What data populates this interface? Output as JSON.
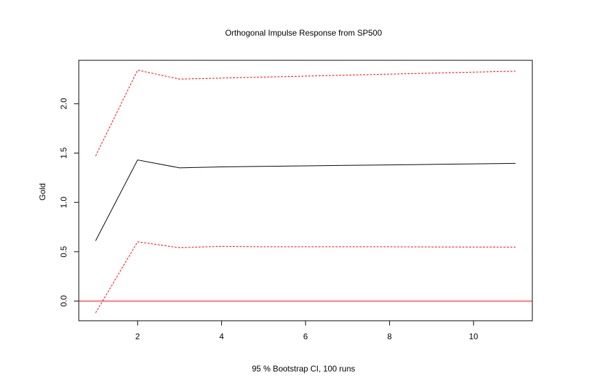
{
  "chart_data": {
    "type": "line",
    "title": "Orthogonal Impulse Response from SP500",
    "xlabel": "95 % Bootstrap CI,  100 runs",
    "ylabel": "Gold",
    "x": [
      1,
      2,
      3,
      4,
      5,
      6,
      7,
      8,
      9,
      10,
      11
    ],
    "xlim": [
      0.6,
      11.4
    ],
    "ylim": [
      -0.2,
      2.44
    ],
    "x_ticks": [
      2,
      4,
      6,
      8,
      10
    ],
    "y_ticks": [
      0.0,
      0.5,
      1.0,
      1.5,
      2.0
    ],
    "x_tick_labels": [
      "2",
      "4",
      "6",
      "8",
      "10"
    ],
    "y_tick_labels": [
      "0.0",
      "0.5",
      "1.0",
      "1.5",
      "2.0"
    ],
    "grid": false,
    "series": [
      {
        "role": "response",
        "color": "#000000",
        "dash": "solid",
        "values": [
          0.61,
          1.43,
          1.35,
          1.36,
          1.365,
          1.37,
          1.375,
          1.38,
          1.385,
          1.39,
          1.395
        ]
      },
      {
        "role": "upper",
        "color": "#ff0000",
        "dash": "dashed",
        "values": [
          1.47,
          2.34,
          2.25,
          2.26,
          2.27,
          2.28,
          2.29,
          2.3,
          2.31,
          2.32,
          2.33
        ]
      },
      {
        "role": "lower",
        "color": "#ff0000",
        "dash": "dashed",
        "values": [
          -0.12,
          0.6,
          0.54,
          0.555,
          0.55,
          0.55,
          0.55,
          0.55,
          0.548,
          0.547,
          0.546
        ]
      }
    ],
    "reference_line": {
      "y": 0.0,
      "color": "#ff0000"
    }
  }
}
